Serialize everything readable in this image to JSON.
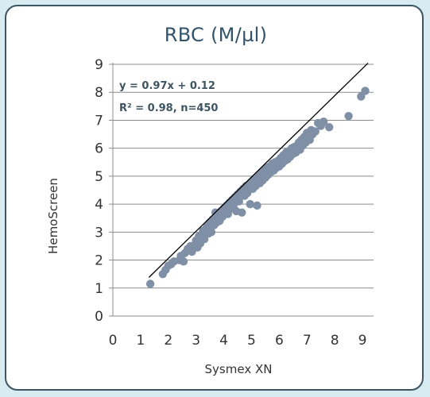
{
  "chart_data": {
    "type": "scatter",
    "title": "RBC (M/µl)",
    "xlabel": "Sysmex XN",
    "ylabel": "HemoScreen",
    "xlim": [
      0,
      9.4
    ],
    "ylim": [
      0,
      9
    ],
    "x_ticks": [
      0,
      1,
      2,
      3,
      4,
      5,
      6,
      7,
      8,
      9
    ],
    "y_ticks": [
      0,
      1,
      2,
      3,
      4,
      5,
      6,
      7,
      8,
      9
    ],
    "grid": "horizontal",
    "annotations": {
      "equation": "y = 0.97x + 0.12",
      "r2_label": "R² = 0.98, n=450"
    },
    "trendline": {
      "slope": 0.97,
      "intercept": 0.12,
      "x_range": [
        1.3,
        9.2
      ]
    },
    "marker_color": "#7f8fa6",
    "line_color": "#000000",
    "series": [
      {
        "points": [
          [
            1.35,
            1.15
          ],
          [
            1.8,
            1.5
          ],
          [
            1.9,
            1.65
          ],
          [
            2.0,
            1.8
          ],
          [
            2.1,
            1.85
          ],
          [
            2.2,
            1.95
          ],
          [
            2.4,
            2.0
          ],
          [
            2.45,
            2.15
          ],
          [
            2.55,
            1.95
          ],
          [
            2.6,
            2.25
          ],
          [
            2.7,
            2.4
          ],
          [
            2.8,
            2.5
          ],
          [
            2.85,
            2.3
          ],
          [
            2.95,
            2.55
          ],
          [
            3.0,
            2.7
          ],
          [
            3.05,
            2.45
          ],
          [
            3.1,
            2.85
          ],
          [
            3.15,
            2.6
          ],
          [
            3.2,
            2.9
          ],
          [
            3.25,
            3.05
          ],
          [
            3.3,
            2.75
          ],
          [
            3.35,
            3.1
          ],
          [
            3.4,
            3.2
          ],
          [
            3.45,
            2.95
          ],
          [
            3.5,
            3.35
          ],
          [
            3.55,
            3.0
          ],
          [
            3.6,
            3.45
          ],
          [
            3.65,
            3.25
          ],
          [
            3.7,
            3.5
          ],
          [
            3.7,
            3.7
          ],
          [
            3.75,
            3.35
          ],
          [
            3.8,
            3.6
          ],
          [
            3.85,
            3.4
          ],
          [
            3.9,
            3.75
          ],
          [
            3.95,
            3.55
          ],
          [
            4.0,
            3.85
          ],
          [
            4.05,
            3.7
          ],
          [
            4.1,
            3.95
          ],
          [
            4.15,
            3.65
          ],
          [
            4.2,
            4.05
          ],
          [
            4.25,
            3.85
          ],
          [
            4.3,
            4.15
          ],
          [
            4.35,
            3.95
          ],
          [
            4.4,
            4.25
          ],
          [
            4.45,
            3.75
          ],
          [
            4.5,
            4.35
          ],
          [
            4.55,
            4.1
          ],
          [
            4.6,
            4.45
          ],
          [
            4.65,
            3.7
          ],
          [
            4.7,
            4.55
          ],
          [
            4.75,
            4.3
          ],
          [
            4.8,
            4.65
          ],
          [
            4.85,
            4.4
          ],
          [
            4.9,
            4.7
          ],
          [
            4.95,
            4.0
          ],
          [
            5.0,
            4.8
          ],
          [
            5.05,
            4.55
          ],
          [
            5.1,
            4.9
          ],
          [
            5.15,
            4.65
          ],
          [
            5.2,
            3.95
          ],
          [
            5.25,
            5.0
          ],
          [
            5.3,
            4.75
          ],
          [
            5.35,
            5.1
          ],
          [
            5.4,
            4.85
          ],
          [
            5.45,
            5.2
          ],
          [
            5.5,
            4.95
          ],
          [
            5.55,
            5.3
          ],
          [
            5.6,
            5.05
          ],
          [
            5.65,
            5.35
          ],
          [
            5.7,
            5.15
          ],
          [
            5.75,
            5.45
          ],
          [
            5.8,
            5.2
          ],
          [
            5.85,
            5.5
          ],
          [
            5.9,
            5.3
          ],
          [
            5.95,
            5.55
          ],
          [
            6.0,
            5.35
          ],
          [
            6.05,
            5.65
          ],
          [
            6.1,
            5.45
          ],
          [
            6.15,
            5.75
          ],
          [
            6.2,
            5.55
          ],
          [
            6.25,
            5.85
          ],
          [
            6.3,
            5.6
          ],
          [
            6.35,
            5.9
          ],
          [
            6.4,
            5.7
          ],
          [
            6.45,
            6.0
          ],
          [
            6.5,
            5.8
          ],
          [
            6.55,
            6.05
          ],
          [
            6.6,
            5.85
          ],
          [
            6.65,
            6.1
          ],
          [
            6.7,
            6.2
          ],
          [
            6.75,
            5.95
          ],
          [
            6.8,
            6.3
          ],
          [
            6.85,
            6.1
          ],
          [
            6.9,
            6.4
          ],
          [
            6.95,
            6.2
          ],
          [
            7.0,
            6.55
          ],
          [
            7.1,
            6.3
          ],
          [
            7.15,
            6.65
          ],
          [
            7.2,
            6.5
          ],
          [
            7.3,
            6.6
          ],
          [
            7.4,
            6.9
          ],
          [
            7.5,
            6.8
          ],
          [
            7.6,
            6.95
          ],
          [
            7.8,
            6.75
          ],
          [
            8.5,
            7.15
          ],
          [
            8.95,
            7.85
          ],
          [
            9.1,
            8.05
          ]
        ]
      }
    ]
  }
}
